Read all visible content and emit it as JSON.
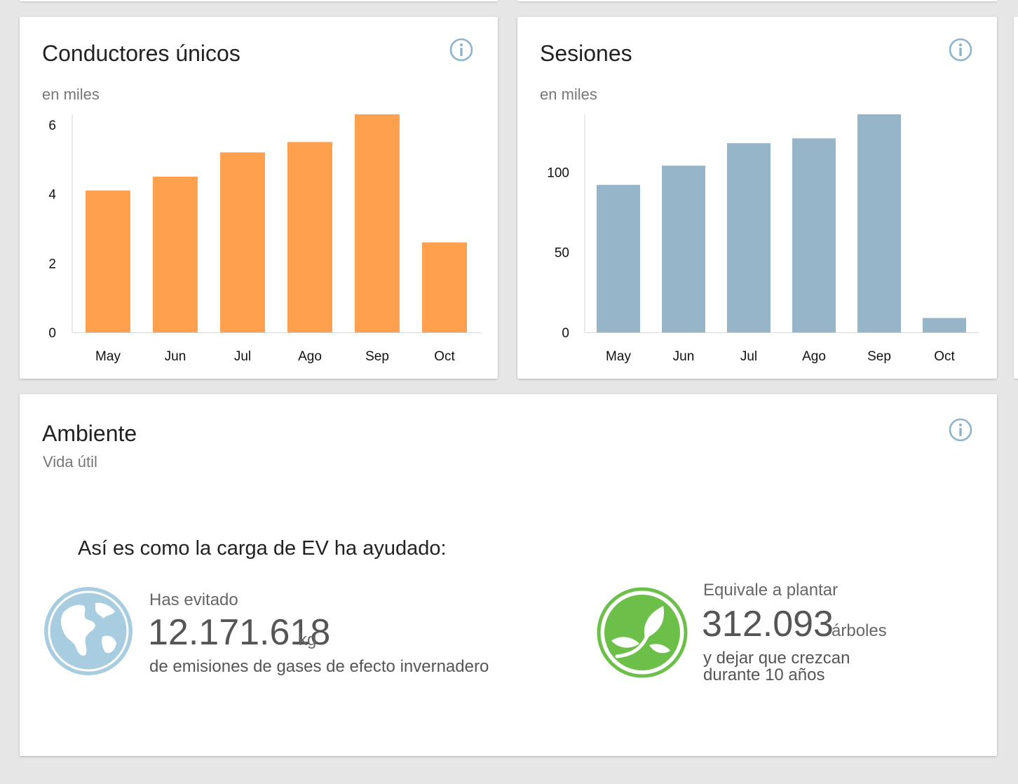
{
  "drivers_card": {
    "title": "Conductores únicos",
    "subtitle": "en miles",
    "chart_data": {
      "type": "bar",
      "categories": [
        "May",
        "Jun",
        "Jul",
        "Ago",
        "Sep",
        "Oct"
      ],
      "values": [
        4.1,
        4.5,
        5.2,
        5.5,
        6.3,
        2.6
      ],
      "ylim": [
        0,
        6.3
      ],
      "yticks": [
        0,
        2,
        4,
        6
      ],
      "color": "#FFA04F"
    }
  },
  "sessions_card": {
    "title": "Sesiones",
    "subtitle": "en miles",
    "chart_data": {
      "type": "bar",
      "categories": [
        "May",
        "Jun",
        "Jul",
        "Ago",
        "Sep",
        "Oct"
      ],
      "values": [
        92,
        104,
        118,
        121,
        136,
        9
      ],
      "ylim": [
        0,
        136
      ],
      "yticks": [
        0,
        50,
        100
      ],
      "color": "#97B5C8"
    }
  },
  "environment_card": {
    "title": "Ambiente",
    "subtitle": "Vida útil",
    "heading": "Así es como la carga de EV ha ayudado:",
    "emissions": {
      "icon": "globe-icon",
      "label": "Has evitado",
      "value": "12.171.618",
      "unit": "kg",
      "description": "de emisiones de gases de efecto invernadero"
    },
    "trees": {
      "icon": "leaf-icon",
      "label": "Equivale a plantar",
      "value": "312.093",
      "unit": "árboles",
      "description_line1": "y dejar que crezcan",
      "description_line2": "durante 10 años"
    }
  },
  "colors": {
    "info_icon": "#8DB4CF",
    "globe": "#A9CDE0",
    "leaf": "#6CC04A"
  }
}
